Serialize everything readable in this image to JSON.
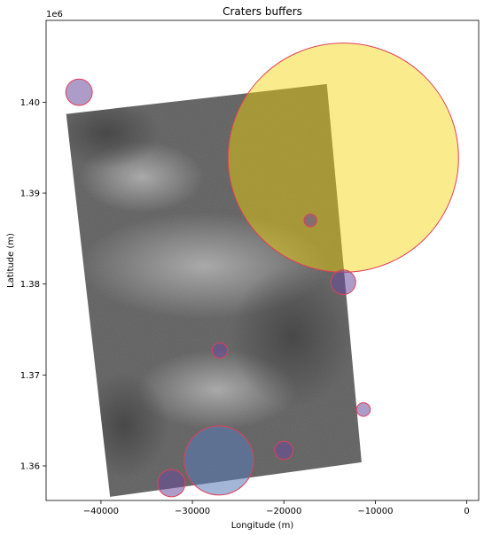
{
  "chart_data": {
    "type": "scatter",
    "title": "Craters buffers",
    "xlabel": "Longitude (m)",
    "ylabel": "Latitude (m)",
    "y_offset_label": "1e6",
    "xlim": [
      -46000,
      1300
    ],
    "ylim": [
      1356200,
      1409000
    ],
    "y_scale": 1000000,
    "x_ticks": [
      -40000,
      -30000,
      -20000,
      -10000,
      0
    ],
    "y_ticks": [
      1360000,
      1370000,
      1380000,
      1390000,
      1400000
    ],
    "x_tick_labels": [
      "−40000",
      "−30000",
      "−20000",
      "−10000",
      "0"
    ],
    "y_tick_labels": [
      "1.36",
      "1.37",
      "1.38",
      "1.39",
      "1.40"
    ],
    "grid": false,
    "image_footprint": {
      "corners": [
        [
          -43800,
          1398700
        ],
        [
          -15300,
          1402000
        ],
        [
          -11500,
          1360400
        ],
        [
          -39000,
          1356600
        ]
      ],
      "colors": {
        "base": "#6f6f6f",
        "light": "#a9a9a9",
        "dark": "#4b4b4b"
      }
    },
    "craters": [
      {
        "x": -13500,
        "y": 1393900,
        "r": 12600,
        "fill": "#f5d400"
      },
      {
        "x": -42400,
        "y": 1401100,
        "r": 1450,
        "fill": "#6a4a9a"
      },
      {
        "x": -17100,
        "y": 1387000,
        "r": 700,
        "fill": "#6a4a9a"
      },
      {
        "x": -13500,
        "y": 1380200,
        "r": 1350,
        "fill": "#6a4a9a"
      },
      {
        "x": -27000,
        "y": 1372700,
        "r": 850,
        "fill": "#6a4a9a"
      },
      {
        "x": -11300,
        "y": 1366200,
        "r": 750,
        "fill": "#6a4a9a"
      },
      {
        "x": -20000,
        "y": 1361700,
        "r": 1000,
        "fill": "#6a4a9a"
      },
      {
        "x": -27100,
        "y": 1360600,
        "r": 3800,
        "fill": "#5a7ab8"
      },
      {
        "x": -32300,
        "y": 1358100,
        "r": 1500,
        "fill": "#6a4a9a"
      }
    ],
    "crater_edge_color": "#e0405a"
  }
}
